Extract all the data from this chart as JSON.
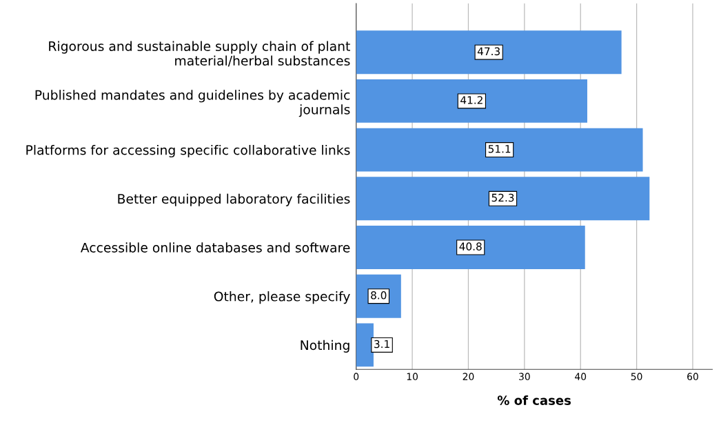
{
  "chart_data": {
    "type": "bar",
    "orientation": "horizontal",
    "xlabel": "% of cases",
    "categories": [
      "Rigorous and sustainable supply chain of plant\nmaterial/herbal substances",
      "Published mandates and guidelines by academic\njournals",
      "Platforms for accessing specific collaborative links",
      "Better equipped laboratory facilities",
      "Accessible online databases and software",
      "Other, please specify",
      "Nothing"
    ],
    "values": [
      47.3,
      41.2,
      51.1,
      52.3,
      40.8,
      8.0,
      3.1
    ],
    "value_labels": [
      "47.3",
      "41.2",
      "51.1",
      "52.3",
      "40.8",
      "8.0",
      "3.1"
    ],
    "color": "#5294e2",
    "xlim": [
      0,
      63.5
    ],
    "xticks": [
      0,
      10,
      20,
      30,
      40,
      50,
      60
    ],
    "grid": "x"
  }
}
